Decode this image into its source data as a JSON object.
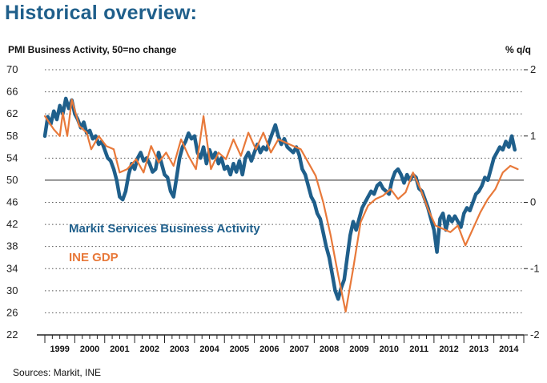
{
  "slide": {
    "title": "Historical overview:",
    "sources": "Sources: Markit, INE"
  },
  "chart_data": {
    "type": "line",
    "left_axis_title": "PMI Business Activity, 50=no change",
    "right_axis_title": "% q/q",
    "left_axis": {
      "min": 22,
      "max": 70,
      "ticks": [
        "70",
        "66",
        "62",
        "58",
        "54",
        "50",
        "46",
        "42",
        "38",
        "34",
        "30",
        "26",
        "22"
      ]
    },
    "right_axis": {
      "min": -2,
      "max": 2,
      "ticks": [
        "2",
        "1",
        "0",
        "-1",
        "-2"
      ]
    },
    "x_axis": {
      "start_year": 1999,
      "end_year": 2014,
      "labels": [
        "1999",
        "2000",
        "2001",
        "2002",
        "2003",
        "2004",
        "2005",
        "2006",
        "2007",
        "2008",
        "2009",
        "2010",
        "2011",
        "2012",
        "2013",
        "2014"
      ]
    },
    "reference_line": 50,
    "grid": "dotted horizontal",
    "series": [
      {
        "name": "Markit Services Business Activity",
        "axis": "left",
        "color": "#1f5f8b",
        "values": [
          [
            1999.0,
            58.0
          ],
          [
            1999.1,
            61.5
          ],
          [
            1999.2,
            60.2
          ],
          [
            1999.3,
            62.5
          ],
          [
            1999.4,
            61.0
          ],
          [
            1999.5,
            63.5
          ],
          [
            1999.6,
            62.0
          ],
          [
            1999.7,
            64.8
          ],
          [
            1999.8,
            63.0
          ],
          [
            1999.9,
            64.5
          ],
          [
            2000.0,
            62.0
          ],
          [
            2000.1,
            61.0
          ],
          [
            2000.2,
            59.5
          ],
          [
            2000.3,
            60.5
          ],
          [
            2000.4,
            58.5
          ],
          [
            2000.5,
            59.0
          ],
          [
            2000.6,
            57.5
          ],
          [
            2000.7,
            58.0
          ],
          [
            2000.8,
            56.5
          ],
          [
            2000.9,
            57.0
          ],
          [
            2001.0,
            55.5
          ],
          [
            2001.1,
            54.0
          ],
          [
            2001.2,
            53.5
          ],
          [
            2001.3,
            52.0
          ],
          [
            2001.4,
            50.0
          ],
          [
            2001.5,
            47.0
          ],
          [
            2001.6,
            46.5
          ],
          [
            2001.7,
            48.0
          ],
          [
            2001.8,
            51.0
          ],
          [
            2001.9,
            53.0
          ],
          [
            2002.0,
            52.0
          ],
          [
            2002.1,
            54.0
          ],
          [
            2002.2,
            55.0
          ],
          [
            2002.3,
            53.5
          ],
          [
            2002.4,
            54.0
          ],
          [
            2002.5,
            53.0
          ],
          [
            2002.6,
            51.5
          ],
          [
            2002.7,
            52.0
          ],
          [
            2002.8,
            55.0
          ],
          [
            2002.9,
            53.0
          ],
          [
            2003.0,
            51.0
          ],
          [
            2003.1,
            50.5
          ],
          [
            2003.2,
            48.0
          ],
          [
            2003.3,
            47.0
          ],
          [
            2003.4,
            50.5
          ],
          [
            2003.5,
            54.0
          ],
          [
            2003.6,
            56.0
          ],
          [
            2003.7,
            57.0
          ],
          [
            2003.8,
            58.5
          ],
          [
            2003.9,
            57.5
          ],
          [
            2004.0,
            58.0
          ],
          [
            2004.1,
            55.0
          ],
          [
            2004.2,
            54.0
          ],
          [
            2004.3,
            56.0
          ],
          [
            2004.4,
            53.0
          ],
          [
            2004.5,
            55.5
          ],
          [
            2004.6,
            54.0
          ],
          [
            2004.7,
            55.0
          ],
          [
            2004.8,
            53.0
          ],
          [
            2004.9,
            54.0
          ],
          [
            2005.0,
            52.0
          ],
          [
            2005.1,
            52.5
          ],
          [
            2005.2,
            51.0
          ],
          [
            2005.3,
            53.0
          ],
          [
            2005.4,
            51.5
          ],
          [
            2005.5,
            53.5
          ],
          [
            2005.6,
            51.0
          ],
          [
            2005.7,
            54.0
          ],
          [
            2005.8,
            55.0
          ],
          [
            2005.9,
            53.5
          ],
          [
            2006.0,
            55.0
          ],
          [
            2006.1,
            56.5
          ],
          [
            2006.2,
            55.0
          ],
          [
            2006.3,
            56.0
          ],
          [
            2006.4,
            55.5
          ],
          [
            2006.5,
            57.0
          ],
          [
            2006.6,
            58.5
          ],
          [
            2006.7,
            60.0
          ],
          [
            2006.8,
            58.0
          ],
          [
            2006.9,
            56.5
          ],
          [
            2007.0,
            57.5
          ],
          [
            2007.1,
            56.0
          ],
          [
            2007.2,
            55.5
          ],
          [
            2007.3,
            55.0
          ],
          [
            2007.4,
            56.0
          ],
          [
            2007.5,
            54.5
          ],
          [
            2007.6,
            52.0
          ],
          [
            2007.7,
            51.0
          ],
          [
            2007.8,
            49.0
          ],
          [
            2007.9,
            47.0
          ],
          [
            2008.0,
            46.0
          ],
          [
            2008.1,
            44.0
          ],
          [
            2008.2,
            43.0
          ],
          [
            2008.3,
            40.5
          ],
          [
            2008.4,
            38.0
          ],
          [
            2008.5,
            36.0
          ],
          [
            2008.6,
            33.0
          ],
          [
            2008.7,
            30.0
          ],
          [
            2008.8,
            28.5
          ],
          [
            2008.9,
            30.5
          ],
          [
            2009.0,
            32.0
          ],
          [
            2009.1,
            36.0
          ],
          [
            2009.2,
            40.0
          ],
          [
            2009.3,
            42.5
          ],
          [
            2009.4,
            41.0
          ],
          [
            2009.5,
            43.0
          ],
          [
            2009.6,
            45.0
          ],
          [
            2009.7,
            46.0
          ],
          [
            2009.8,
            47.0
          ],
          [
            2009.9,
            48.0
          ],
          [
            2010.0,
            47.5
          ],
          [
            2010.1,
            49.0
          ],
          [
            2010.2,
            49.5
          ],
          [
            2010.3,
            48.5
          ],
          [
            2010.4,
            48.0
          ],
          [
            2010.5,
            47.5
          ],
          [
            2010.6,
            50.0
          ],
          [
            2010.7,
            51.5
          ],
          [
            2010.8,
            52.0
          ],
          [
            2010.9,
            51.0
          ],
          [
            2011.0,
            49.5
          ],
          [
            2011.1,
            51.0
          ],
          [
            2011.2,
            50.0
          ],
          [
            2011.3,
            51.0
          ],
          [
            2011.4,
            50.5
          ],
          [
            2011.5,
            48.5
          ],
          [
            2011.6,
            48.0
          ],
          [
            2011.7,
            46.5
          ],
          [
            2011.8,
            45.0
          ],
          [
            2011.9,
            43.0
          ],
          [
            2012.0,
            41.0
          ],
          [
            2012.1,
            37.0
          ],
          [
            2012.2,
            43.0
          ],
          [
            2012.3,
            44.0
          ],
          [
            2012.4,
            41.0
          ],
          [
            2012.5,
            43.5
          ],
          [
            2012.6,
            42.5
          ],
          [
            2012.7,
            43.5
          ],
          [
            2012.8,
            42.5
          ],
          [
            2012.9,
            41.5
          ],
          [
            2013.0,
            44.0
          ],
          [
            2013.1,
            45.0
          ],
          [
            2013.2,
            44.5
          ],
          [
            2013.3,
            46.0
          ],
          [
            2013.4,
            47.5
          ],
          [
            2013.5,
            48.0
          ],
          [
            2013.6,
            49.0
          ],
          [
            2013.7,
            50.5
          ],
          [
            2013.8,
            50.0
          ],
          [
            2013.9,
            52.0
          ],
          [
            2014.0,
            54.0
          ],
          [
            2014.1,
            55.0
          ],
          [
            2014.2,
            56.0
          ],
          [
            2014.3,
            55.5
          ],
          [
            2014.4,
            57.0
          ],
          [
            2014.5,
            56.0
          ],
          [
            2014.6,
            58.0
          ],
          [
            2014.7,
            55.5
          ]
        ]
      },
      {
        "name": "INE GDP",
        "axis": "right",
        "color": "#e8793a",
        "values": [
          [
            1999.0,
            1.3
          ],
          [
            1999.3,
            1.1
          ],
          [
            1999.5,
            1.0
          ],
          [
            1999.6,
            1.35
          ],
          [
            1999.75,
            1.0
          ],
          [
            1999.9,
            1.55
          ],
          [
            2000.15,
            1.15
          ],
          [
            2000.4,
            1.05
          ],
          [
            2000.55,
            0.8
          ],
          [
            2000.8,
            1.0
          ],
          [
            2001.05,
            0.85
          ],
          [
            2001.3,
            0.8
          ],
          [
            2001.5,
            0.45
          ],
          [
            2001.75,
            0.5
          ],
          [
            2002.05,
            0.65
          ],
          [
            2002.3,
            0.45
          ],
          [
            2002.55,
            0.85
          ],
          [
            2002.8,
            0.6
          ],
          [
            2003.05,
            0.75
          ],
          [
            2003.3,
            0.55
          ],
          [
            2003.55,
            0.95
          ],
          [
            2003.8,
            0.7
          ],
          [
            2004.05,
            0.5
          ],
          [
            2004.3,
            1.3
          ],
          [
            2004.55,
            0.5
          ],
          [
            2004.8,
            0.75
          ],
          [
            2005.05,
            0.65
          ],
          [
            2005.3,
            0.95
          ],
          [
            2005.55,
            0.7
          ],
          [
            2005.8,
            1.05
          ],
          [
            2006.05,
            0.8
          ],
          [
            2006.3,
            1.05
          ],
          [
            2006.55,
            0.75
          ],
          [
            2006.8,
            0.95
          ],
          [
            2007.05,
            0.9
          ],
          [
            2007.3,
            0.85
          ],
          [
            2007.55,
            0.8
          ],
          [
            2007.8,
            0.6
          ],
          [
            2008.05,
            0.4
          ],
          [
            2008.3,
            0.0
          ],
          [
            2008.55,
            -0.5
          ],
          [
            2008.8,
            -1.1
          ],
          [
            2009.05,
            -1.65
          ],
          [
            2009.3,
            -1.0
          ],
          [
            2009.55,
            -0.3
          ],
          [
            2009.8,
            -0.05
          ],
          [
            2010.05,
            0.05
          ],
          [
            2010.3,
            0.1
          ],
          [
            2010.55,
            0.2
          ],
          [
            2010.8,
            0.05
          ],
          [
            2011.05,
            0.15
          ],
          [
            2011.3,
            0.45
          ],
          [
            2011.55,
            0.2
          ],
          [
            2011.8,
            -0.1
          ],
          [
            2012.05,
            -0.35
          ],
          [
            2012.3,
            -0.4
          ],
          [
            2012.55,
            -0.45
          ],
          [
            2012.8,
            -0.35
          ],
          [
            2013.05,
            -0.65
          ],
          [
            2013.3,
            -0.4
          ],
          [
            2013.55,
            -0.15
          ],
          [
            2013.8,
            0.05
          ],
          [
            2014.05,
            0.2
          ],
          [
            2014.3,
            0.45
          ],
          [
            2014.55,
            0.55
          ],
          [
            2014.8,
            0.5
          ]
        ]
      }
    ]
  }
}
